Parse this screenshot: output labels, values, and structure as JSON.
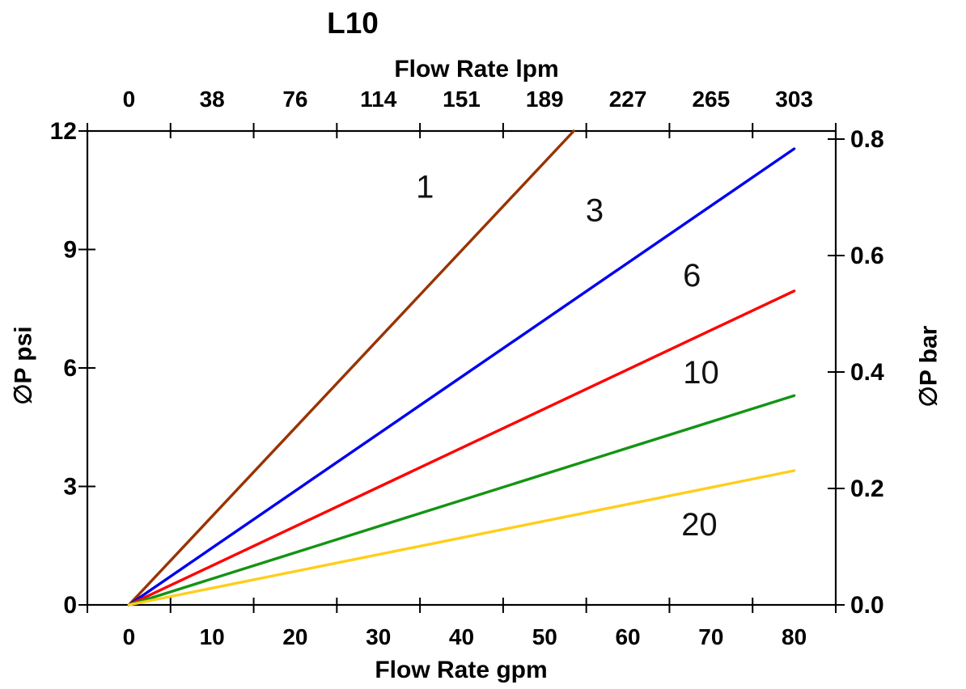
{
  "chart_data": {
    "type": "line",
    "title": "L10",
    "grid": false,
    "legend": "none (series labeled directly on lines)",
    "axes": {
      "top": {
        "label": "Flow Rate lpm",
        "tick_labels": [
          "0",
          "38",
          "76",
          "114",
          "151",
          "189",
          "227",
          "265",
          "303"
        ]
      },
      "bottom": {
        "label": "Flow Rate gpm",
        "tick_labels": [
          "0",
          "10",
          "20",
          "30",
          "40",
          "50",
          "60",
          "70",
          "80"
        ]
      },
      "left": {
        "label": "∅P psi",
        "tick_labels": [
          "12",
          "9",
          "6",
          "3",
          "0"
        ],
        "range_psi": [
          0,
          12
        ]
      },
      "right": {
        "label": "∅P bar",
        "tick_labels": [
          "0.8",
          "0.6",
          "0.4",
          "0.2",
          "0.0"
        ],
        "range_bar": [
          0,
          0.8
        ]
      }
    },
    "series": [
      {
        "name": "1",
        "color": "#993300",
        "points_gpm_psi": [
          [
            0,
            0
          ],
          [
            53.5,
            12
          ]
        ],
        "note": "steepest line, exits top of plot near 53 gpm (~2.24 psi per 10 gpm)",
        "label_at_gpm_psi": [
          35.6,
          10.6
        ]
      },
      {
        "name": "3",
        "color": "#0000ee",
        "points_gpm_psi": [
          [
            0,
            0
          ],
          [
            80,
            11.55
          ]
        ],
        "label_at_gpm_psi": [
          56.0,
          10.0
        ]
      },
      {
        "name": "6",
        "color": "#ff0000",
        "points_gpm_psi": [
          [
            0,
            0
          ],
          [
            80,
            7.95
          ]
        ],
        "label_at_gpm_psi": [
          67.7,
          8.35
        ]
      },
      {
        "name": "10",
        "color": "#149414",
        "points_gpm_psi": [
          [
            0,
            0
          ],
          [
            80,
            5.3
          ]
        ],
        "label_at_gpm_psi": [
          68.8,
          5.9
        ]
      },
      {
        "name": "20",
        "color": "#ffce1b",
        "points_gpm_psi": [
          [
            0,
            0
          ],
          [
            80,
            3.4
          ]
        ],
        "label_at_gpm_psi": [
          68.6,
          2.05
        ]
      }
    ]
  }
}
